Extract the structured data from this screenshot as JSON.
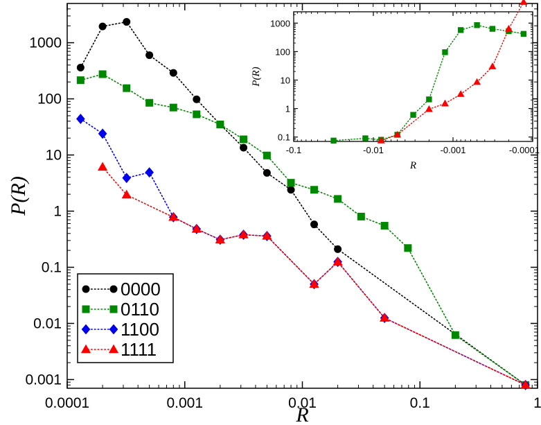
{
  "chart_data": [
    {
      "type": "line",
      "role": "main",
      "xscale": "log",
      "yscale": "log",
      "xlim": [
        0.0001,
        1
      ],
      "ylim": [
        0.0007,
        5000
      ],
      "xlabel": "R",
      "ylabel": "P(R)",
      "grid": false,
      "legend_position": "bottom-left",
      "xticks": [
        {
          "value": 0.0001,
          "label": "0.0001"
        },
        {
          "value": 0.001,
          "label": "0.001"
        },
        {
          "value": 0.01,
          "label": "0.01"
        },
        {
          "value": 0.1,
          "label": "0.1"
        },
        {
          "value": 1,
          "label": "1"
        }
      ],
      "yticks": [
        {
          "value": 0.001,
          "label": "0.001"
        },
        {
          "value": 0.01,
          "label": "0.01"
        },
        {
          "value": 0.1,
          "label": "0.1"
        },
        {
          "value": 1,
          "label": "1"
        },
        {
          "value": 10,
          "label": "10"
        },
        {
          "value": 100,
          "label": "100"
        },
        {
          "value": 1000,
          "label": "1000"
        }
      ],
      "series": [
        {
          "name": "0000",
          "color": "#000000",
          "marker": "circle",
          "points": [
            [
              0.00013,
              360
            ],
            [
              0.0002,
              1950
            ],
            [
              0.00032,
              2350
            ],
            [
              0.0005,
              600
            ],
            [
              0.0008,
              290
            ],
            [
              0.00126,
              98
            ],
            [
              0.002,
              35
            ],
            [
              0.00316,
              13.5
            ],
            [
              0.005,
              4.8
            ],
            [
              0.008,
              2.4
            ],
            [
              0.0126,
              0.58
            ],
            [
              0.02,
              0.21
            ],
            [
              0.79,
              0.0008
            ]
          ]
        },
        {
          "name": "0110",
          "color": "#008800",
          "marker": "square",
          "points": [
            [
              0.00013,
              215
            ],
            [
              0.0002,
              275
            ],
            [
              0.00032,
              155
            ],
            [
              0.0005,
              85
            ],
            [
              0.0008,
              70
            ],
            [
              0.00126,
              53
            ],
            [
              0.002,
              35
            ],
            [
              0.00316,
              19
            ],
            [
              0.005,
              9.8
            ],
            [
              0.008,
              3.2
            ],
            [
              0.0126,
              2.4
            ],
            [
              0.02,
              1.65
            ],
            [
              0.0316,
              0.8
            ],
            [
              0.05,
              0.55
            ],
            [
              0.079,
              0.22
            ],
            [
              0.2,
              0.0062
            ],
            [
              0.79,
              0.0008
            ]
          ]
        },
        {
          "name": "1100",
          "color": "#0000ee",
          "marker": "diamond",
          "points": [
            [
              0.00013,
              44
            ],
            [
              0.0002,
              24
            ],
            [
              0.00032,
              3.9
            ],
            [
              0.0005,
              4.9
            ],
            [
              0.0008,
              0.78
            ],
            [
              0.00126,
              0.48
            ],
            [
              0.002,
              0.31
            ],
            [
              0.00316,
              0.38
            ],
            [
              0.005,
              0.36
            ],
            [
              0.0126,
              0.05
            ],
            [
              0.02,
              0.125
            ],
            [
              0.05,
              0.0125
            ],
            [
              0.79,
              0.0008
            ]
          ]
        },
        {
          "name": "1111",
          "color": "#ff0000",
          "marker": "triangle",
          "points": [
            [
              0.0002,
              6.1
            ],
            [
              0.00032,
              1.95
            ],
            [
              0.0008,
              0.78
            ],
            [
              0.00126,
              0.48
            ],
            [
              0.002,
              0.31
            ],
            [
              0.00316,
              0.38
            ],
            [
              0.005,
              0.36
            ],
            [
              0.0126,
              0.05
            ],
            [
              0.02,
              0.125
            ],
            [
              0.05,
              0.0125
            ],
            [
              0.79,
              0.0008
            ]
          ]
        }
      ]
    },
    {
      "type": "line",
      "role": "inset",
      "xscale": "symlog-negative",
      "yscale": "log",
      "xlim": [
        -0.1,
        -0.0001
      ],
      "ylim": [
        0.07,
        2500
      ],
      "xlabel": "R",
      "ylabel": "P(R)",
      "grid": false,
      "legend_position": "none",
      "xticks": [
        {
          "value": -0.1,
          "label": "-0.1"
        },
        {
          "value": -0.01,
          "label": "-0.01"
        },
        {
          "value": -0.001,
          "label": "-0.001"
        },
        {
          "value": -0.0001,
          "label": "-0.0001"
        }
      ],
      "yticks": [
        {
          "value": 0.1,
          "label": "0.1"
        },
        {
          "value": 1,
          "label": "1"
        },
        {
          "value": 10,
          "label": "10"
        },
        {
          "value": 100,
          "label": "100"
        },
        {
          "value": 1000,
          "label": "1000"
        }
      ],
      "series": [
        {
          "name": "0110",
          "color": "#008800",
          "marker": "square",
          "points": [
            [
              -0.0316,
              0.075
            ],
            [
              -0.0126,
              0.09
            ],
            [
              -0.008,
              0.08
            ],
            [
              -0.005,
              0.12
            ],
            [
              -0.00316,
              0.6
            ],
            [
              -0.002,
              2.1
            ],
            [
              -0.00126,
              95
            ],
            [
              -0.0008,
              570
            ],
            [
              -0.0005,
              850
            ],
            [
              -0.00032,
              630
            ],
            [
              -0.0002,
              520
            ],
            [
              -0.00013,
              420
            ]
          ]
        },
        {
          "name": "1111",
          "color": "#ff0000",
          "marker": "triangle",
          "points": [
            [
              -0.008,
              0.075
            ],
            [
              -0.005,
              0.12
            ],
            [
              -0.002,
              0.95
            ],
            [
              -0.00126,
              1.5
            ],
            [
              -0.0008,
              3.2
            ],
            [
              -0.0005,
              8.5
            ],
            [
              -0.00032,
              30
            ],
            [
              -0.0002,
              630
            ],
            [
              -0.00013,
              5500
            ]
          ]
        }
      ]
    }
  ]
}
